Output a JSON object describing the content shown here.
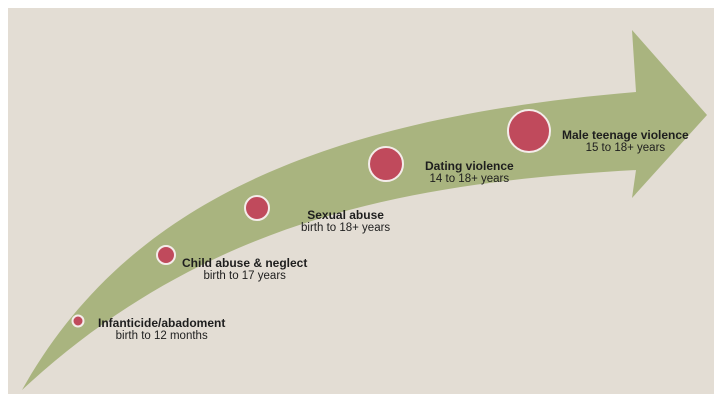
{
  "diagram": {
    "colors": {
      "background": "#e3ddd4",
      "arrow": "#a9b47f",
      "marker_fill": "#c04a5c",
      "marker_stroke": "#f4ecea"
    },
    "stages": [
      {
        "title": "Infanticide/abadoment",
        "range": "birth to 12 months",
        "relative_size": 1
      },
      {
        "title": "Child abuse & neglect",
        "range": "birth to 17 years",
        "relative_size": 2
      },
      {
        "title": "Sexual abuse",
        "range": "birth to 18+ years",
        "relative_size": 3
      },
      {
        "title": "Dating violence",
        "range": "14 to 18+ years",
        "relative_size": 4
      },
      {
        "title": "Male teenage violence",
        "range": "15 to 18+ years",
        "relative_size": 5
      }
    ]
  }
}
